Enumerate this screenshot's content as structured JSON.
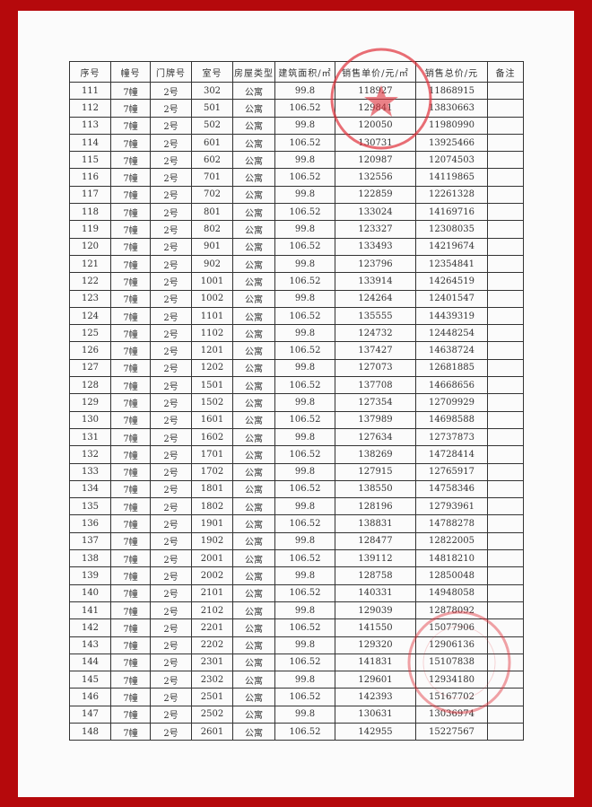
{
  "headers": [
    "序号",
    "幢号",
    "门牌号",
    "室号",
    "房屋类型",
    "建筑面积/㎡",
    "销售单价/元/㎡",
    "销售总价/元",
    "备注"
  ],
  "rows": [
    [
      "111",
      "7幢",
      "2号",
      "302",
      "公寓",
      "99.8",
      "118927",
      "11868915",
      ""
    ],
    [
      "112",
      "7幢",
      "2号",
      "501",
      "公寓",
      "106.52",
      "129841",
      "13830663",
      ""
    ],
    [
      "113",
      "7幢",
      "2号",
      "502",
      "公寓",
      "99.8",
      "120050",
      "11980990",
      ""
    ],
    [
      "114",
      "7幢",
      "2号",
      "601",
      "公寓",
      "106.52",
      "130731",
      "13925466",
      ""
    ],
    [
      "115",
      "7幢",
      "2号",
      "602",
      "公寓",
      "99.8",
      "120987",
      "12074503",
      ""
    ],
    [
      "116",
      "7幢",
      "2号",
      "701",
      "公寓",
      "106.52",
      "132556",
      "14119865",
      ""
    ],
    [
      "117",
      "7幢",
      "2号",
      "702",
      "公寓",
      "99.8",
      "122859",
      "12261328",
      ""
    ],
    [
      "118",
      "7幢",
      "2号",
      "801",
      "公寓",
      "106.52",
      "133024",
      "14169716",
      ""
    ],
    [
      "119",
      "7幢",
      "2号",
      "802",
      "公寓",
      "99.8",
      "123327",
      "12308035",
      ""
    ],
    [
      "120",
      "7幢",
      "2号",
      "901",
      "公寓",
      "106.52",
      "133493",
      "14219674",
      ""
    ],
    [
      "121",
      "7幢",
      "2号",
      "902",
      "公寓",
      "99.8",
      "123796",
      "12354841",
      ""
    ],
    [
      "122",
      "7幢",
      "2号",
      "1001",
      "公寓",
      "106.52",
      "133914",
      "14264519",
      ""
    ],
    [
      "123",
      "7幢",
      "2号",
      "1002",
      "公寓",
      "99.8",
      "124264",
      "12401547",
      ""
    ],
    [
      "124",
      "7幢",
      "2号",
      "1101",
      "公寓",
      "106.52",
      "135555",
      "14439319",
      ""
    ],
    [
      "125",
      "7幢",
      "2号",
      "1102",
      "公寓",
      "99.8",
      "124732",
      "12448254",
      ""
    ],
    [
      "126",
      "7幢",
      "2号",
      "1201",
      "公寓",
      "106.52",
      "137427",
      "14638724",
      ""
    ],
    [
      "127",
      "7幢",
      "2号",
      "1202",
      "公寓",
      "99.8",
      "127073",
      "12681885",
      ""
    ],
    [
      "128",
      "7幢",
      "2号",
      "1501",
      "公寓",
      "106.52",
      "137708",
      "14668656",
      ""
    ],
    [
      "129",
      "7幢",
      "2号",
      "1502",
      "公寓",
      "99.8",
      "127354",
      "12709929",
      ""
    ],
    [
      "130",
      "7幢",
      "2号",
      "1601",
      "公寓",
      "106.52",
      "137989",
      "14698588",
      ""
    ],
    [
      "131",
      "7幢",
      "2号",
      "1602",
      "公寓",
      "99.8",
      "127634",
      "12737873",
      ""
    ],
    [
      "132",
      "7幢",
      "2号",
      "1701",
      "公寓",
      "106.52",
      "138269",
      "14728414",
      ""
    ],
    [
      "133",
      "7幢",
      "2号",
      "1702",
      "公寓",
      "99.8",
      "127915",
      "12765917",
      ""
    ],
    [
      "134",
      "7幢",
      "2号",
      "1801",
      "公寓",
      "106.52",
      "138550",
      "14758346",
      ""
    ],
    [
      "135",
      "7幢",
      "2号",
      "1802",
      "公寓",
      "99.8",
      "128196",
      "12793961",
      ""
    ],
    [
      "136",
      "7幢",
      "2号",
      "1901",
      "公寓",
      "106.52",
      "138831",
      "14788278",
      ""
    ],
    [
      "137",
      "7幢",
      "2号",
      "1902",
      "公寓",
      "99.8",
      "128477",
      "12822005",
      ""
    ],
    [
      "138",
      "7幢",
      "2号",
      "2001",
      "公寓",
      "106.52",
      "139112",
      "14818210",
      ""
    ],
    [
      "139",
      "7幢",
      "2号",
      "2002",
      "公寓",
      "99.8",
      "128758",
      "12850048",
      ""
    ],
    [
      "140",
      "7幢",
      "2号",
      "2101",
      "公寓",
      "106.52",
      "140331",
      "14948058",
      ""
    ],
    [
      "141",
      "7幢",
      "2号",
      "2102",
      "公寓",
      "99.8",
      "129039",
      "12878092",
      ""
    ],
    [
      "142",
      "7幢",
      "2号",
      "2201",
      "公寓",
      "106.52",
      "141550",
      "15077906",
      ""
    ],
    [
      "143",
      "7幢",
      "2号",
      "2202",
      "公寓",
      "99.8",
      "129320",
      "12906136",
      ""
    ],
    [
      "144",
      "7幢",
      "2号",
      "2301",
      "公寓",
      "106.52",
      "141831",
      "15107838",
      ""
    ],
    [
      "145",
      "7幢",
      "2号",
      "2302",
      "公寓",
      "99.8",
      "129601",
      "12934180",
      ""
    ],
    [
      "146",
      "7幢",
      "2号",
      "2501",
      "公寓",
      "106.52",
      "142393",
      "15167702",
      ""
    ],
    [
      "147",
      "7幢",
      "2号",
      "2502",
      "公寓",
      "99.8",
      "130631",
      "13036974",
      ""
    ],
    [
      "148",
      "7幢",
      "2号",
      "2601",
      "公寓",
      "106.52",
      "142955",
      "15227567",
      ""
    ]
  ],
  "colors": {
    "border_frame": "#b5090c",
    "stamp": "#e0303a",
    "paper": "#fbfbfb"
  }
}
